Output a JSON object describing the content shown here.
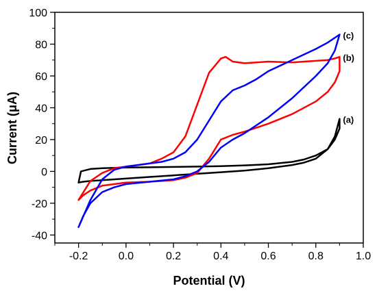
{
  "chart_data": {
    "type": "line",
    "xlabel": "Potential (V)",
    "ylabel": "Current (μA)",
    "xlim": [
      -0.3,
      1.0
    ],
    "ylim": [
      -45,
      100
    ],
    "x_ticks": [
      -0.2,
      0.0,
      0.2,
      0.4,
      0.6,
      0.8,
      1.0
    ],
    "x_tick_labels": [
      "-0.2",
      "0.0",
      "0.2",
      "0.4",
      "0.6",
      "0.8",
      "1.0"
    ],
    "y_ticks": [
      -40,
      -20,
      0,
      20,
      40,
      60,
      80,
      100
    ],
    "y_tick_labels": [
      "-40",
      "-20",
      "0",
      "20",
      "40",
      "60",
      "80",
      "100"
    ],
    "grid": false,
    "series": [
      {
        "name": "(a)",
        "color": "#000000",
        "x": [
          -0.2,
          -0.18,
          -0.15,
          -0.1,
          0.0,
          0.1,
          0.2,
          0.3,
          0.4,
          0.5,
          0.6,
          0.7,
          0.75,
          0.8,
          0.85,
          0.88,
          0.9,
          0.9,
          0.88,
          0.85,
          0.8,
          0.75,
          0.7,
          0.6,
          0.5,
          0.4,
          0.3,
          0.2,
          0.1,
          0.0,
          -0.1,
          -0.15,
          -0.19,
          -0.2
        ],
        "y": [
          -7,
          -6.5,
          -6,
          -5.5,
          -4.5,
          -3.5,
          -2.5,
          -1.5,
          -0.5,
          0.5,
          2,
          4,
          5.5,
          8,
          14,
          22,
          33,
          27,
          20,
          14,
          10,
          7.5,
          6,
          4.5,
          3.8,
          3.3,
          3,
          2.8,
          2.6,
          2.4,
          2,
          1.5,
          0,
          -7
        ]
      },
      {
        "name": "(b)",
        "color": "#ff0000",
        "x": [
          -0.2,
          -0.18,
          -0.15,
          -0.1,
          -0.05,
          0.0,
          0.1,
          0.2,
          0.25,
          0.3,
          0.35,
          0.4,
          0.45,
          0.5,
          0.6,
          0.7,
          0.8,
          0.85,
          0.88,
          0.9,
          0.9,
          0.88,
          0.85,
          0.8,
          0.75,
          0.7,
          0.6,
          0.5,
          0.45,
          0.42,
          0.4,
          0.35,
          0.3,
          0.25,
          0.2,
          0.15,
          0.1,
          0.05,
          0.0,
          -0.05,
          -0.1,
          -0.15,
          -0.2
        ],
        "y": [
          -18,
          -15,
          -12,
          -9,
          -8,
          -7,
          -6.5,
          -5.5,
          -4,
          -1,
          8,
          20,
          23,
          25,
          30,
          36,
          44,
          50,
          56,
          63,
          72,
          71,
          70,
          69.5,
          69,
          68.5,
          69,
          68,
          69,
          72,
          71,
          62,
          42,
          22,
          12,
          8,
          5,
          4,
          3,
          2,
          -1,
          -6,
          -18
        ]
      },
      {
        "name": "(c)",
        "color": "#0000ff",
        "x": [
          -0.2,
          -0.18,
          -0.15,
          -0.1,
          -0.05,
          0.0,
          0.1,
          0.2,
          0.25,
          0.3,
          0.35,
          0.4,
          0.45,
          0.5,
          0.6,
          0.7,
          0.8,
          0.85,
          0.88,
          0.9,
          0.9,
          0.85,
          0.8,
          0.7,
          0.6,
          0.55,
          0.5,
          0.45,
          0.4,
          0.35,
          0.3,
          0.25,
          0.2,
          0.15,
          0.1,
          0.05,
          0.0,
          -0.05,
          -0.1,
          -0.15,
          -0.2
        ],
        "y": [
          -35,
          -28,
          -20,
          -13,
          -10,
          -8,
          -6.5,
          -5,
          -3,
          0,
          6,
          15,
          20,
          24,
          34,
          46,
          60,
          68,
          76,
          86,
          86,
          81,
          77,
          70,
          63,
          58,
          54,
          51,
          44,
          32,
          20,
          12,
          8,
          6,
          5,
          4,
          3,
          1,
          -5,
          -18,
          -35
        ]
      }
    ]
  }
}
